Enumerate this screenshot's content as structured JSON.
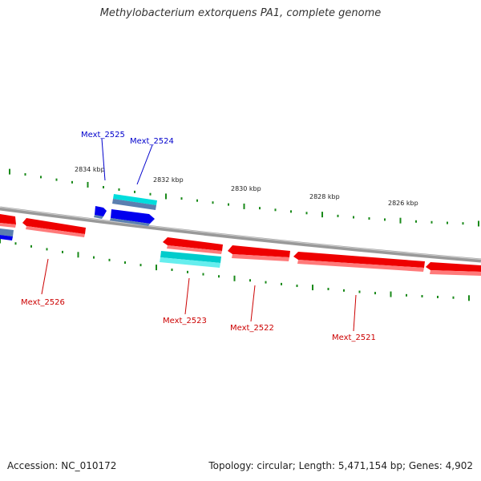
{
  "title": "Methylobacterium extorquens PA1, complete genome",
  "footer": {
    "accession": "Accession: NC_010172",
    "summary": "Topology: circular; Length: 5,471,154 bp; Genes: 4,902"
  },
  "colors": {
    "forward_cds": "#0000ee",
    "forward_cds_alt": "#00dddd",
    "reverse_cds": "#ee0000",
    "reverse_cds_alt": "#00cccc",
    "backbone": "#888888",
    "ticks": "#1a8a1a",
    "forward_label": "#0000cc",
    "reverse_label": "#cc0000"
  },
  "scale": {
    "tick_labels": [
      "2834 kbp",
      "2832 kbp",
      "2830 kbp",
      "2828 kbp",
      "2826 kbp"
    ]
  },
  "genes": [
    {
      "name": "Mext_2525",
      "strand": "forward"
    },
    {
      "name": "Mext_2524",
      "strand": "forward"
    },
    {
      "name": "Mext_2526",
      "strand": "reverse"
    },
    {
      "name": "Mext_2523",
      "strand": "reverse"
    },
    {
      "name": "Mext_2522",
      "strand": "reverse"
    },
    {
      "name": "Mext_2521",
      "strand": "reverse"
    }
  ]
}
